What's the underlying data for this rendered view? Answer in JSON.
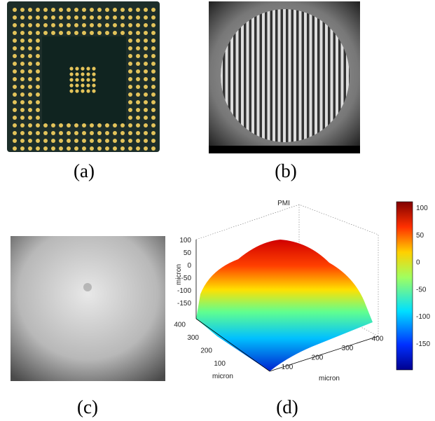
{
  "labels": [
    "(a)",
    "(b)",
    "(c)",
    "(d)"
  ],
  "plot": {
    "title": "PMI",
    "z_label": "micron",
    "x_label": "micron",
    "y_label": "micron",
    "z_ticks": [
      100,
      50,
      0,
      -50,
      -100,
      -150
    ],
    "y_ticks": [
      100,
      200,
      300,
      400
    ],
    "x_ticks": [
      100,
      200,
      300,
      400
    ],
    "colorbar_ticks": [
      100,
      50,
      0,
      -50,
      -100,
      -150
    ]
  }
}
